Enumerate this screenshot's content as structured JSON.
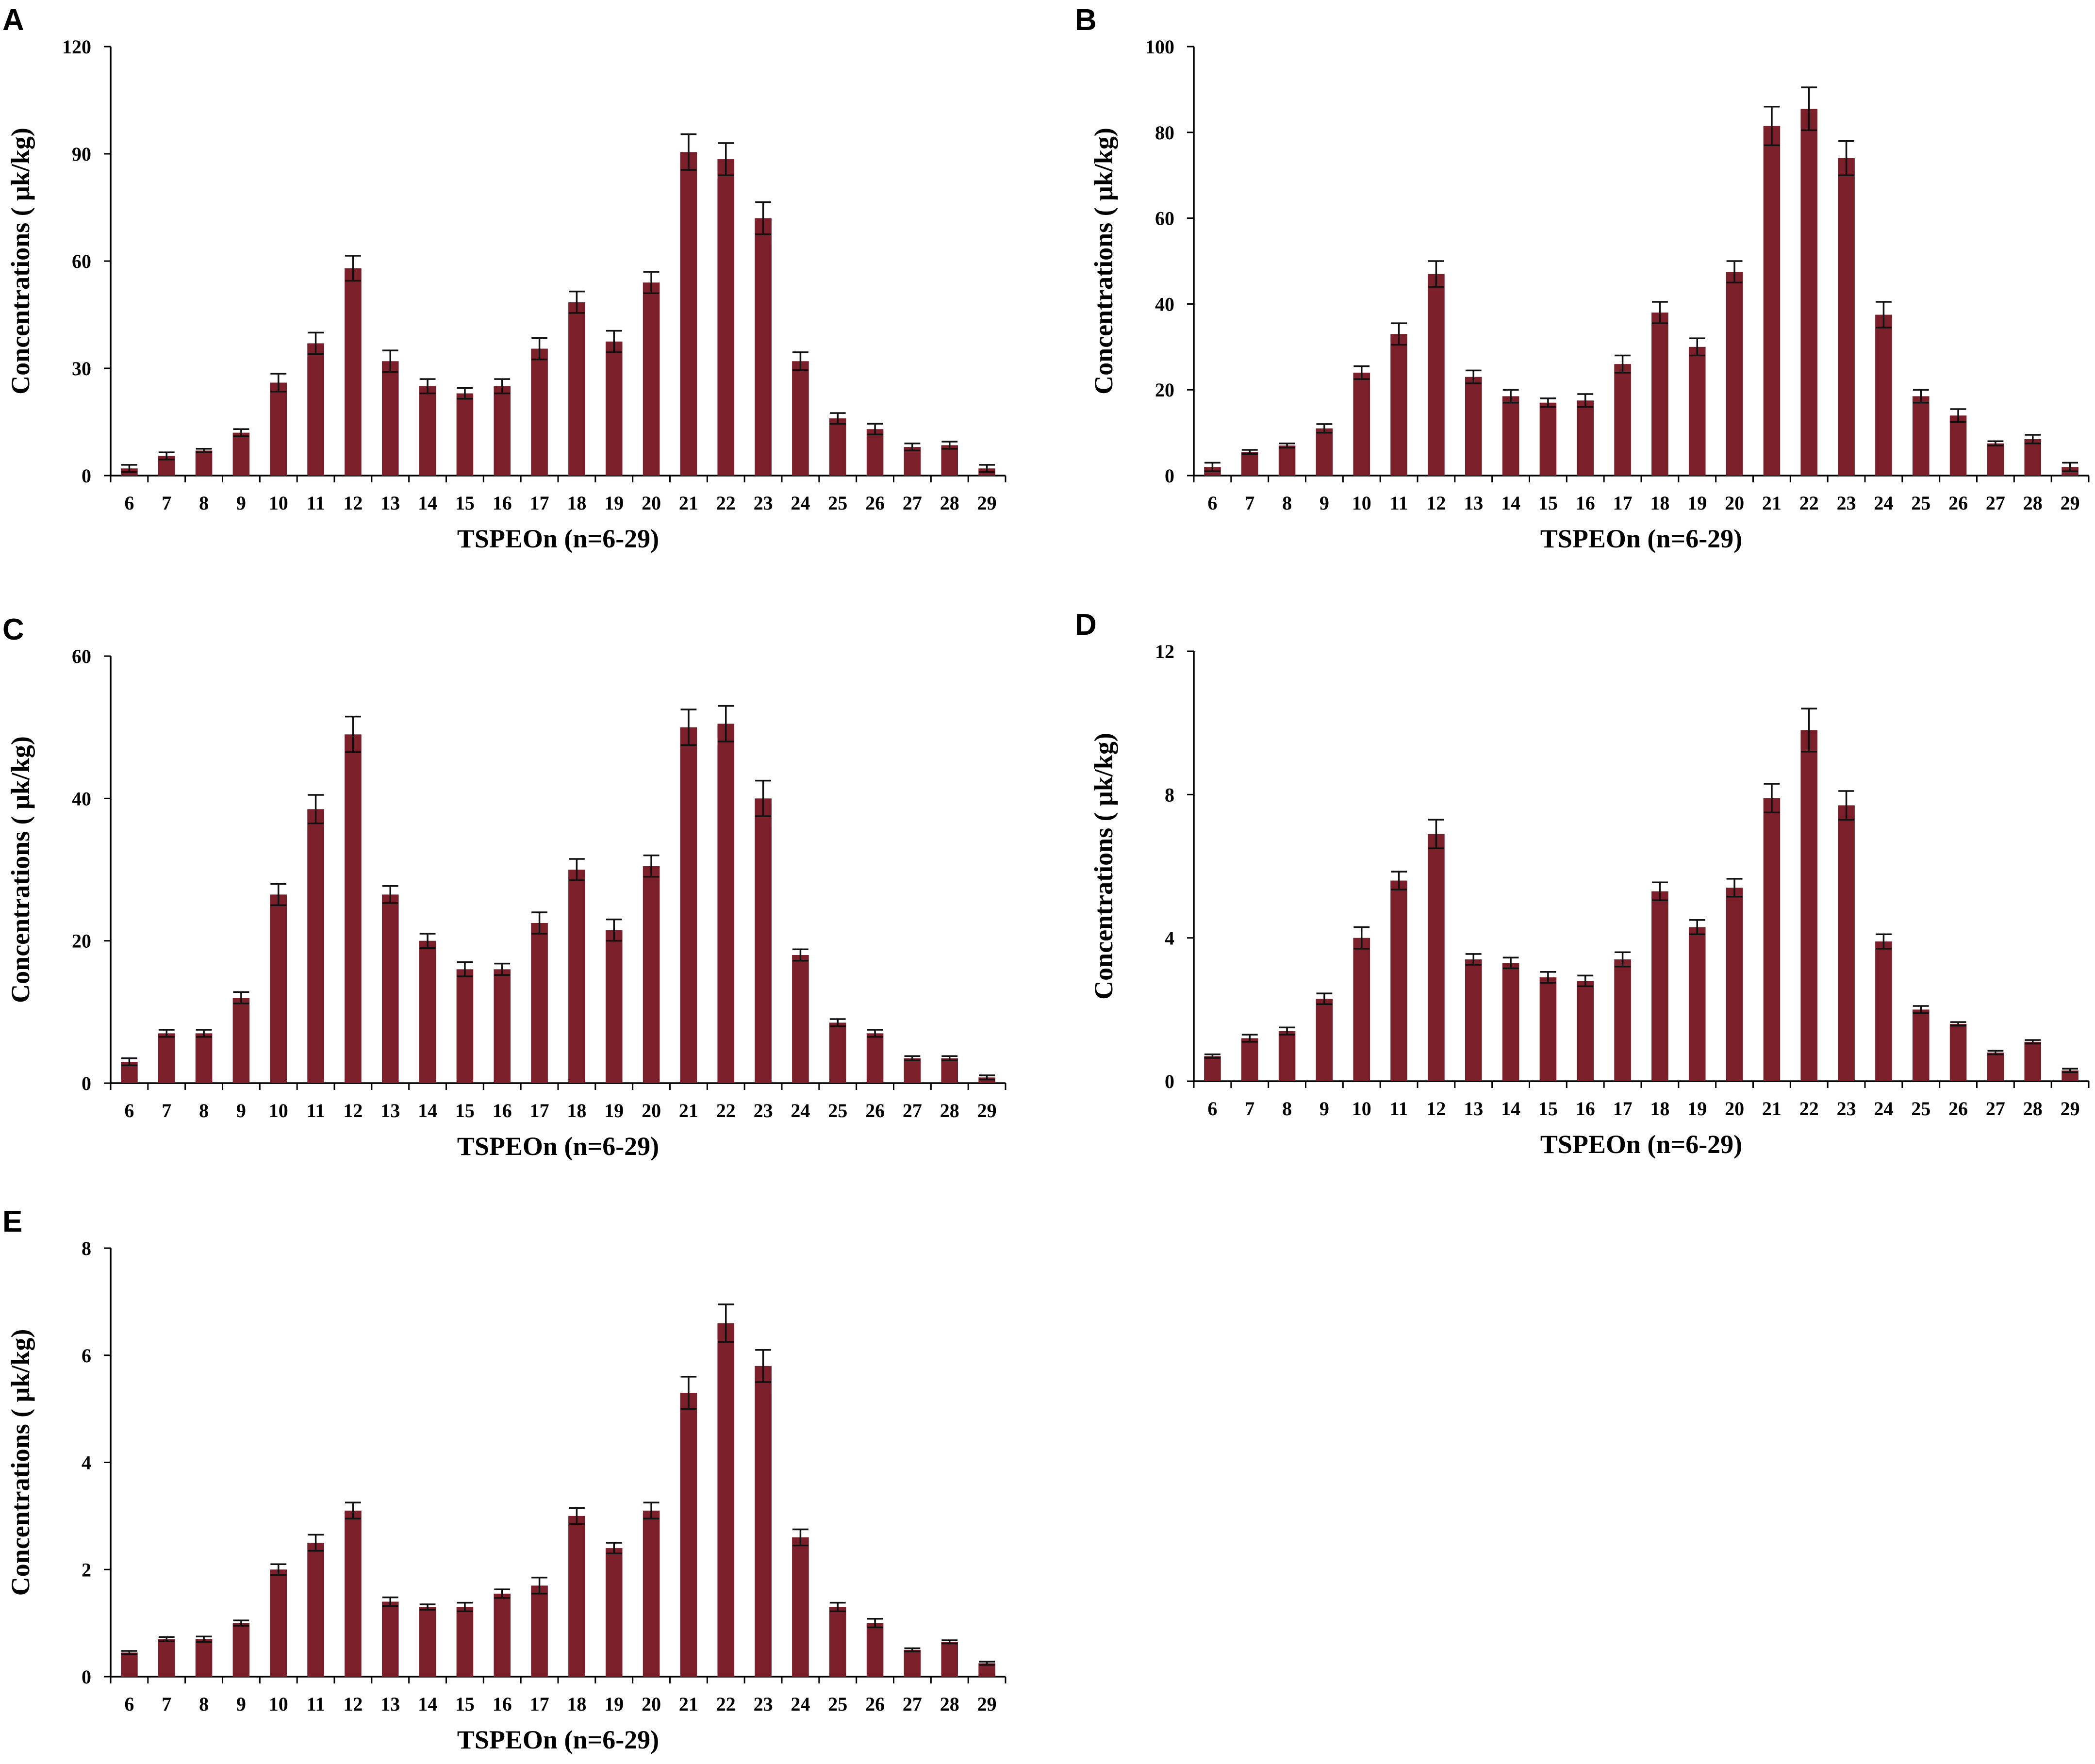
{
  "chart_data": [
    {
      "panel": "A",
      "type": "bar",
      "xlabel": "TSPEOn (n=6-29)",
      "ylabel": "Concentrations ( μk/kg)",
      "categories": [
        "6",
        "7",
        "8",
        "9",
        "10",
        "11",
        "12",
        "13",
        "14",
        "15",
        "16",
        "17",
        "18",
        "19",
        "20",
        "21",
        "22",
        "23",
        "24",
        "25",
        "26",
        "27",
        "28",
        "29"
      ],
      "values": [
        2,
        5.5,
        7,
        12,
        26,
        37,
        58,
        32,
        25,
        23,
        25,
        35.5,
        48.5,
        37.5,
        54,
        90.5,
        88.5,
        72,
        32,
        16,
        13,
        8,
        8.5,
        2
      ],
      "errors": [
        1,
        1,
        0.5,
        1,
        2.5,
        3,
        3.5,
        3,
        2,
        1.5,
        2,
        3,
        3,
        3,
        3,
        5,
        4.5,
        4.5,
        2.5,
        1.5,
        1.5,
        1,
        1,
        1
      ],
      "yticks": [
        0,
        30,
        60,
        90,
        120
      ],
      "ylim": [
        0,
        120
      ],
      "bar_color": "#7b1f2b"
    },
    {
      "panel": "B",
      "type": "bar",
      "xlabel": "TSPEOn (n=6-29)",
      "ylabel": "Concentrations ( μk/kg)",
      "categories": [
        "6",
        "7",
        "8",
        "9",
        "10",
        "11",
        "12",
        "13",
        "14",
        "15",
        "16",
        "17",
        "18",
        "19",
        "20",
        "21",
        "22",
        "23",
        "24",
        "25",
        "26",
        "27",
        "28",
        "29"
      ],
      "values": [
        2,
        5.5,
        7,
        11,
        24,
        33,
        47,
        23,
        18.5,
        17,
        17.5,
        26,
        38,
        30,
        47.5,
        81.5,
        85.5,
        74,
        37.5,
        18.5,
        14,
        7.5,
        8.5,
        2
      ],
      "errors": [
        1,
        0.5,
        0.5,
        1,
        1.5,
        2.5,
        3,
        1.5,
        1.5,
        1,
        1.5,
        2,
        2.5,
        2,
        2.5,
        4.5,
        5,
        4,
        3,
        1.5,
        1.5,
        0.5,
        1,
        1
      ],
      "yticks": [
        0,
        20,
        40,
        60,
        80,
        100
      ],
      "ylim": [
        0,
        100
      ],
      "bar_color": "#7b1f2b"
    },
    {
      "panel": "C",
      "type": "bar",
      "xlabel": "TSPEOn (n=6-29)",
      "ylabel": "Concentrations ( μk/kg)",
      "categories": [
        "6",
        "7",
        "8",
        "9",
        "10",
        "11",
        "12",
        "13",
        "14",
        "15",
        "16",
        "17",
        "18",
        "19",
        "20",
        "21",
        "22",
        "23",
        "24",
        "25",
        "26",
        "27",
        "28",
        "29"
      ],
      "values": [
        3,
        7,
        7,
        12,
        26.5,
        38.5,
        49,
        26.5,
        20,
        16,
        16,
        22.5,
        30,
        21.5,
        30.5,
        50,
        50.5,
        40,
        18,
        8.5,
        7,
        3.5,
        3.5,
        0.8
      ],
      "errors": [
        0.5,
        0.5,
        0.5,
        0.8,
        1.5,
        2,
        2.5,
        1.2,
        1,
        1,
        0.8,
        1.5,
        1.5,
        1.5,
        1.5,
        2.5,
        2.5,
        2.5,
        0.8,
        0.5,
        0.5,
        0.3,
        0.3,
        0.3
      ],
      "yticks": [
        0,
        20,
        40,
        60
      ],
      "ylim": [
        0,
        60
      ],
      "bar_color": "#7b1f2b"
    },
    {
      "panel": "D",
      "type": "bar",
      "xlabel": "TSPEOn (n=6-29)",
      "ylabel": "Concentrations ( μk/kg)",
      "categories": [
        "6",
        "7",
        "8",
        "9",
        "10",
        "11",
        "12",
        "13",
        "14",
        "15",
        "16",
        "17",
        "18",
        "19",
        "20",
        "21",
        "22",
        "23",
        "24",
        "25",
        "26",
        "27",
        "28",
        "29"
      ],
      "values": [
        0.7,
        1.2,
        1.4,
        2.3,
        4,
        5.6,
        6.9,
        3.4,
        3.3,
        2.9,
        2.8,
        3.4,
        5.3,
        4.3,
        5.4,
        7.9,
        9.8,
        7.7,
        3.9,
        2,
        1.6,
        0.8,
        1.1,
        0.3
      ],
      "errors": [
        0.05,
        0.1,
        0.1,
        0.15,
        0.3,
        0.25,
        0.4,
        0.15,
        0.15,
        0.15,
        0.15,
        0.2,
        0.25,
        0.2,
        0.25,
        0.4,
        0.6,
        0.4,
        0.2,
        0.1,
        0.05,
        0.05,
        0.05,
        0.05
      ],
      "yticks": [
        0,
        4,
        8,
        12
      ],
      "ylim": [
        0,
        12
      ],
      "bar_color": "#7b1f2b"
    },
    {
      "panel": "E",
      "type": "bar",
      "xlabel": "TSPEOn (n=6-29)",
      "ylabel": "Concentrations ( μk/kg)",
      "categories": [
        "6",
        "7",
        "8",
        "9",
        "10",
        "11",
        "12",
        "13",
        "14",
        "15",
        "16",
        "17",
        "18",
        "19",
        "20",
        "21",
        "22",
        "23",
        "24",
        "25",
        "26",
        "27",
        "28",
        "29"
      ],
      "values": [
        0.45,
        0.7,
        0.7,
        1,
        2,
        2.5,
        3.1,
        1.4,
        1.3,
        1.3,
        1.55,
        1.7,
        3,
        2.4,
        3.1,
        5.3,
        6.6,
        5.8,
        2.6,
        1.3,
        1,
        0.5,
        0.65,
        0.25
      ],
      "errors": [
        0.03,
        0.04,
        0.05,
        0.05,
        0.1,
        0.15,
        0.15,
        0.08,
        0.05,
        0.08,
        0.08,
        0.15,
        0.15,
        0.1,
        0.15,
        0.3,
        0.35,
        0.3,
        0.15,
        0.08,
        0.08,
        0.03,
        0.03,
        0.03
      ],
      "yticks": [
        0,
        2,
        4,
        6,
        8
      ],
      "ylim": [
        0,
        8
      ],
      "bar_color": "#7b1f2b"
    }
  ]
}
